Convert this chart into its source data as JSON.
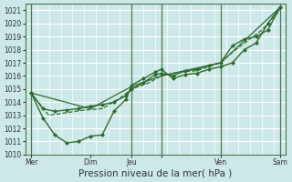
{
  "title": "Pression niveau de la mer( hPa )",
  "background_color": "#cce8e8",
  "grid_color": "#aad4d4",
  "plot_bg_color": "#cce8e8",
  "ylim": [
    1010,
    1021.5
  ],
  "yticks": [
    1010,
    1011,
    1012,
    1013,
    1014,
    1015,
    1016,
    1017,
    1018,
    1019,
    1020,
    1021
  ],
  "xlim": [
    0,
    22
  ],
  "xtick_positions": [
    0.5,
    5.5,
    9.0,
    11.5,
    16.5,
    21.5
  ],
  "xtick_labels": [
    "Mer",
    "Dim",
    "Jeu",
    "",
    "Ven",
    "Sam"
  ],
  "vline_positions": [
    0.5,
    9.0,
    11.5,
    16.5,
    21.5
  ],
  "line_color": "#2d6a2d",
  "marker_color": "#2d6a2d",
  "lines": [
    {
      "x": [
        0.5,
        1.5,
        2.5,
        3.5,
        4.5,
        5.5,
        6.5,
        7.5,
        8.5,
        9.0,
        10.0,
        11.0,
        11.5,
        12.5,
        13.5,
        14.5,
        15.5,
        16.5,
        17.5,
        18.5,
        19.5,
        20.5,
        21.5
      ],
      "y": [
        1014.7,
        1013.5,
        1013.3,
        1013.4,
        1013.5,
        1013.7,
        1013.8,
        1014.0,
        1014.5,
        1015.0,
        1015.5,
        1016.1,
        1016.2,
        1016.0,
        1016.4,
        1016.5,
        1016.8,
        1017.0,
        1018.3,
        1018.8,
        1019.0,
        1019.5,
        1021.2
      ],
      "style": "solid",
      "marker": "D",
      "markersize": 2.0,
      "linewidth": 1.0
    },
    {
      "x": [
        0.5,
        1.5,
        2.5,
        3.5,
        4.5,
        5.5,
        6.5,
        7.5,
        8.5,
        9.0,
        10.0,
        11.0,
        11.5,
        12.5,
        13.5,
        14.5,
        15.5,
        16.5,
        17.5,
        18.5,
        19.5,
        20.5,
        21.5
      ],
      "y": [
        1014.7,
        1012.8,
        1011.5,
        1010.9,
        1011.0,
        1011.4,
        1011.5,
        1013.3,
        1014.2,
        1015.3,
        1015.8,
        1016.3,
        1016.5,
        1015.8,
        1016.1,
        1016.2,
        1016.5,
        1016.7,
        1017.0,
        1018.0,
        1018.5,
        1020.0,
        1021.2
      ],
      "style": "solid",
      "marker": "D",
      "markersize": 2.0,
      "linewidth": 1.0
    },
    {
      "x": [
        0.5,
        2.0,
        3.5,
        5.0,
        6.5,
        8.0,
        9.0,
        10.5,
        11.5,
        13.0,
        14.5,
        16.5,
        17.5,
        18.5,
        20.0,
        21.5
      ],
      "y": [
        1014.7,
        1013.0,
        1013.2,
        1013.4,
        1013.5,
        1014.3,
        1015.0,
        1015.5,
        1016.0,
        1016.3,
        1016.4,
        1017.0,
        1017.8,
        1018.5,
        1019.5,
        1021.0
      ],
      "style": "dashed",
      "marker": null,
      "markersize": 0,
      "linewidth": 0.9
    },
    {
      "x": [
        0.5,
        5.5,
        9.0,
        11.5,
        16.5,
        21.5
      ],
      "y": [
        1014.7,
        1013.5,
        1015.2,
        1016.0,
        1017.0,
        1021.2
      ],
      "style": "solid",
      "marker": null,
      "markersize": 0,
      "linewidth": 0.9
    }
  ],
  "ylabel_fontsize": 5.5,
  "xlabel_fontsize": 7.5,
  "tick_fontsize": 5.5
}
